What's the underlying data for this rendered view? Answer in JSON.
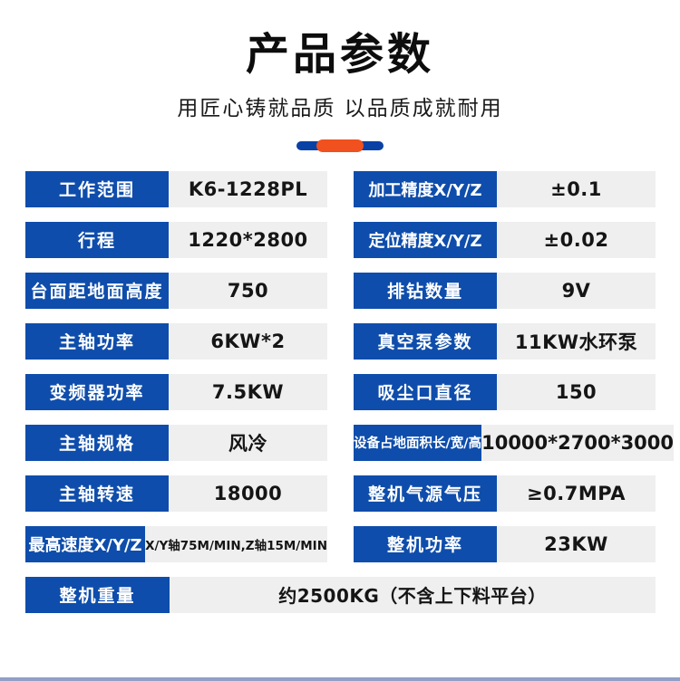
{
  "header": {
    "title": "产品参数",
    "subtitle": "用匠心铸就品质 以品质成就耐用"
  },
  "colors": {
    "label_blue": "#0e4dab",
    "value_gray": "#efefef",
    "divider_blue": "#0a41a5",
    "divider_orange": "#f0511f",
    "footer_bar": "#8f9fc6"
  },
  "specs": {
    "left": [
      {
        "label": "工作范围",
        "value": "K6-1228PL"
      },
      {
        "label": "行程",
        "value": "1220*2800"
      },
      {
        "label": "台面距地面高度",
        "value": "750"
      },
      {
        "label": "主轴功率",
        "value": "6KW*2"
      },
      {
        "label": "变频器功率",
        "value": "7.5KW"
      },
      {
        "label": "主轴规格",
        "value": "风冷"
      },
      {
        "label": "主轴转速",
        "value": "18000"
      },
      {
        "label": "最高速度X/Y/Z",
        "value": "X/Y轴75M/MIN,Z轴15M/MIN"
      }
    ],
    "right": [
      {
        "label": "加工精度X/Y/Z",
        "value": "±0.1"
      },
      {
        "label": "定位精度X/Y/Z",
        "value": "±0.02"
      },
      {
        "label": "排钻数量",
        "value": "9V"
      },
      {
        "label": "真空泵参数",
        "value": "11KW水环泵"
      },
      {
        "label": "吸尘口直径",
        "value": "150"
      },
      {
        "label": "设备占地面积长/宽/高",
        "value": "10000*2700*3000"
      },
      {
        "label": "整机气源气压",
        "value": "≥0.7MPA"
      },
      {
        "label": "整机功率",
        "value": "23KW"
      }
    ],
    "full": {
      "label": "整机重量",
      "value": "约2500KG（不含上下料平台）"
    }
  }
}
